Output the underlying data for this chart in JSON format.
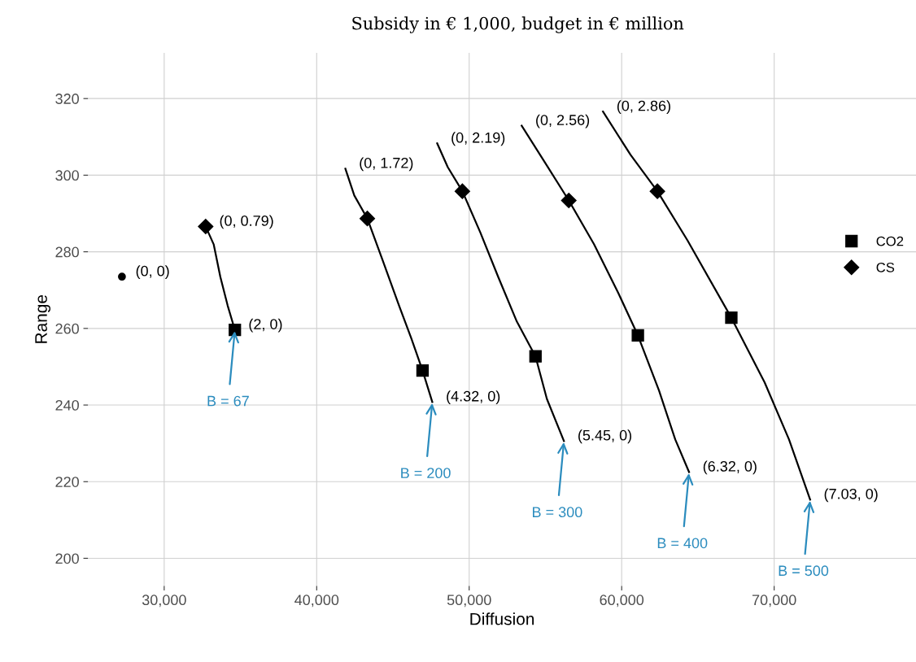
{
  "chart_data": {
    "type": "line",
    "title": "Subsidy in € 1,000, budget in € million",
    "xlabel": "Diffusion",
    "ylabel": "Range",
    "xlim": [
      25000,
      79300
    ],
    "ylim": [
      192.8,
      331.9
    ],
    "xticks": [
      {
        "value": 30000,
        "label": "30,000"
      },
      {
        "value": 40000,
        "label": "40,000"
      },
      {
        "value": 50000,
        "label": "50,000"
      },
      {
        "value": 60000,
        "label": "60,000"
      },
      {
        "value": 70000,
        "label": "70,000"
      }
    ],
    "yticks": [
      200,
      220,
      240,
      260,
      280,
      300,
      320
    ],
    "grid": true,
    "legend": "right",
    "series": [
      {
        "color": "#000000",
        "x": [
          32720,
          33250,
          33680,
          34160,
          34635
        ],
        "values": [
          286.6,
          281.9,
          273.5,
          266.0,
          259.6
        ]
      },
      {
        "color": "#000000",
        "x": [
          41881,
          42467,
          43320,
          44332,
          45398,
          46197,
          46943,
          47582
        ],
        "values": [
          301.7,
          294.7,
          288.7,
          277.7,
          266.0,
          257.5,
          249.0,
          240.8
        ]
      },
      {
        "color": "#000000",
        "x": [
          47902,
          48595,
          49554,
          50726,
          51898,
          53123,
          54349,
          55095,
          56214
        ],
        "values": [
          308.3,
          302.1,
          295.8,
          285.1,
          273.5,
          261.8,
          252.7,
          241.6,
          230.6
        ]
      },
      {
        "color": "#000000",
        "x": [
          53443,
          54988,
          56533,
          58185,
          59783,
          61062,
          62447,
          63513,
          64419
        ],
        "values": [
          312.9,
          303.2,
          293.4,
          282.0,
          269.2,
          258.2,
          243.8,
          231.0,
          222.5
        ]
      },
      {
        "color": "#000000",
        "x": [
          58771,
          60583,
          62342,
          64313,
          67190,
          69375,
          70973,
          72358
        ],
        "values": [
          316.6,
          305.3,
          295.8,
          283.0,
          262.8,
          245.9,
          231.0,
          215.3
        ]
      },
      {
        "type": "scatter",
        "color": "#000000",
        "marker": "circle",
        "x": [
          27230
        ],
        "values": [
          273.5
        ]
      },
      {
        "type": "scatter",
        "name": "CO2",
        "color": "#000000",
        "marker": "square",
        "x": [
          34635,
          46943,
          54349,
          61062,
          67190
        ],
        "values": [
          259.6,
          249.0,
          252.7,
          258.2,
          262.8
        ]
      },
      {
        "type": "scatter",
        "name": "CS",
        "color": "#000000",
        "marker": "diamond",
        "x": [
          32720,
          43320,
          49554,
          56533,
          62342
        ],
        "values": [
          286.6,
          288.7,
          295.8,
          293.4,
          295.8
        ]
      }
    ],
    "annotations": [
      {
        "text": "(0, 0)",
        "x": 27230,
        "y": 273.5
      },
      {
        "text": "(0, 0.79)",
        "x": 32720,
        "y": 286.6
      },
      {
        "text": "(2, 0)",
        "x": 34635,
        "y": 259.6
      },
      {
        "text": "(0, 1.72)",
        "x": 41881,
        "y": 301.7
      },
      {
        "text": "(4.32, 0)",
        "x": 47582,
        "y": 240.8
      },
      {
        "text": "(0, 2.19)",
        "x": 47902,
        "y": 308.3
      },
      {
        "text": "(5.45, 0)",
        "x": 56214,
        "y": 230.6
      },
      {
        "text": "(0, 2.56)",
        "x": 53443,
        "y": 312.9
      },
      {
        "text": "(6.32, 0)",
        "x": 64419,
        "y": 222.5
      },
      {
        "text": "(0, 2.86)",
        "x": 58771,
        "y": 316.6
      },
      {
        "text": "(7.03, 0)",
        "x": 72358,
        "y": 215.3
      },
      {
        "text": "B = 67",
        "x": 34635,
        "y": 259.6
      },
      {
        "text": "B = 200",
        "x": 47582,
        "y": 240.8
      },
      {
        "text": "B = 300",
        "x": 56214,
        "y": 230.6
      },
      {
        "text": "B = 400",
        "x": 64419,
        "y": 222.5
      },
      {
        "text": "B = 500",
        "x": 72358,
        "y": 215.3
      }
    ]
  }
}
